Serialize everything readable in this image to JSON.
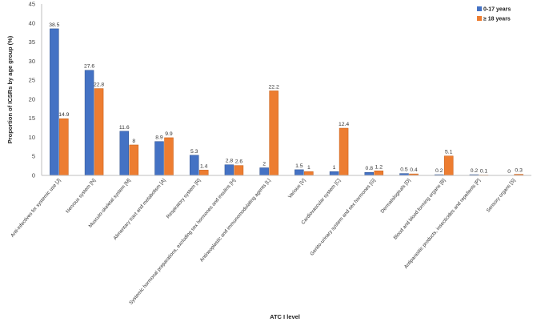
{
  "chart_data": {
    "type": "bar",
    "title": "",
    "xlabel": "ATC I level",
    "ylabel": "Proportion of ICSRs by age group (%)",
    "ylim": [
      0,
      45
    ],
    "yticks": [
      0,
      5,
      10,
      15,
      20,
      25,
      30,
      35,
      40,
      45
    ],
    "grid": false,
    "legend_position": "top-right",
    "categories": [
      "Anti-infectives for systemic use [J]",
      "Nervous system [N]",
      "Musculo-skeletal system [M]",
      "Alimentary tract and metabolism [A]",
      "Respiratory system [R]",
      "Systemic hormonal preparations, excluding sex hormones and insulins [H]",
      "Antineoplastic and immunomodulating agents [L]",
      "Various [V]",
      "Cardiovascular system [C]",
      "Genito-urinary system and sex hormones [G]",
      "Dermatologicals [D]",
      "Blood and blood forming organs [B]",
      "Antiparasitic products, insecticides and repellents [P]",
      "Sensory organs [S]"
    ],
    "series": [
      {
        "name": "0-17 years",
        "color": "#4472C4",
        "values": [
          38.5,
          27.6,
          11.6,
          8.9,
          5.3,
          2.8,
          2,
          1.5,
          1,
          0.8,
          0.5,
          0.2,
          0.2,
          0
        ],
        "labels": [
          "38.5",
          "27.6",
          "11.6",
          "8.9",
          "5.3",
          "2.8",
          "2",
          "1.5",
          "1",
          "0.8",
          "0.5",
          "0.2",
          "0.2",
          "0"
        ]
      },
      {
        "name": "≥ 18 years",
        "color": "#ED7D31",
        "values": [
          14.9,
          22.8,
          8,
          9.9,
          1.4,
          2.6,
          22.2,
          1,
          12.4,
          1.2,
          0.4,
          5.1,
          0.1,
          0.3
        ],
        "labels": [
          "14.9",
          "22.8",
          "8",
          "9.9",
          "1.4",
          "2.6",
          "22.2",
          "1",
          "12.4",
          "1.2",
          "0.4",
          "5.1",
          "0.1",
          "0.3"
        ]
      }
    ]
  }
}
